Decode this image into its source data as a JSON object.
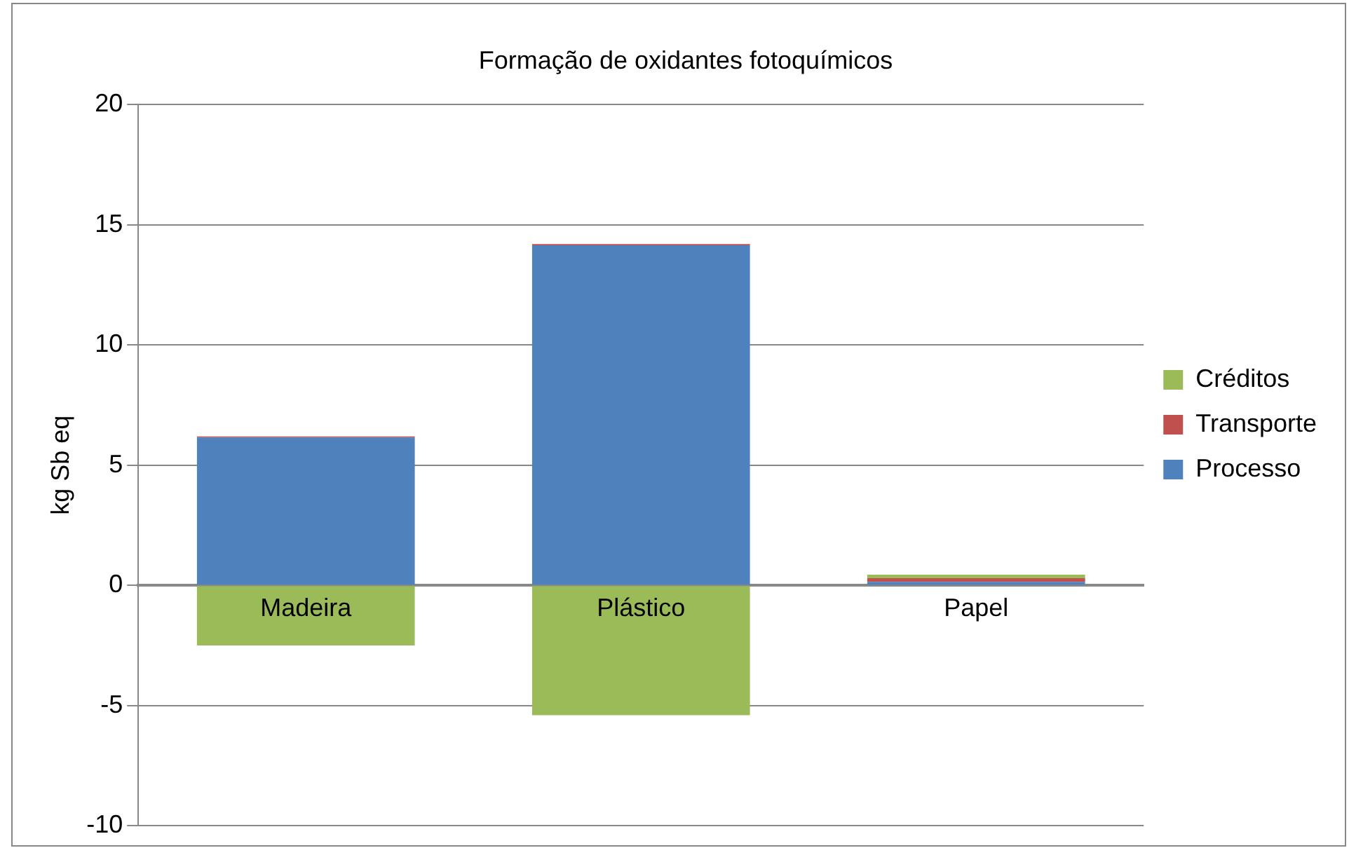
{
  "chart_data": {
    "type": "bar",
    "title": "Formação de oxidantes fotoquímicos",
    "ylabel": "kg Sb eq",
    "categories": [
      "Madeira",
      "Plástico",
      "Papel"
    ],
    "stacked": true,
    "series": [
      {
        "name": "Processo",
        "color": "#4f81bd",
        "values": [
          6.15,
          14.15,
          0.15
        ]
      },
      {
        "name": "Transporte",
        "color": "#c0504d",
        "values": [
          0.05,
          0.05,
          0.15
        ]
      },
      {
        "name": "Créditos",
        "color": "#9bbb59",
        "values": [
          -2.5,
          -5.4,
          0.15
        ]
      }
    ],
    "ylim": [
      -10,
      20
    ],
    "yticks": [
      -10,
      -5,
      0,
      5,
      10,
      15,
      20
    ],
    "grid": "y",
    "legend": "right"
  }
}
